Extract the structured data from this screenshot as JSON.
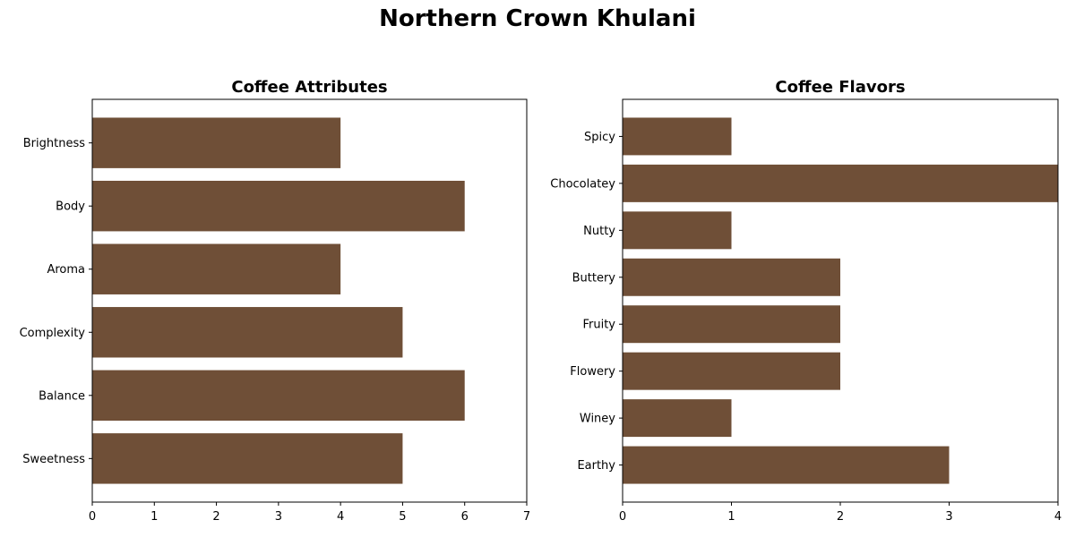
{
  "figure_title": "Northern Crown Khulani",
  "bar_color": "#6f4f37",
  "chart_data": [
    {
      "type": "bar",
      "orientation": "horizontal",
      "title": "Coffee Attributes",
      "categories": [
        "Sweetness",
        "Balance",
        "Complexity",
        "Aroma",
        "Body",
        "Brightness"
      ],
      "values": [
        5,
        6,
        5,
        4,
        6,
        4
      ],
      "xlim": [
        0,
        7
      ],
      "xticks": [
        0,
        1,
        2,
        3,
        4,
        5,
        6,
        7
      ],
      "xlabel": "",
      "ylabel": "",
      "grid": false
    },
    {
      "type": "bar",
      "orientation": "horizontal",
      "title": "Coffee Flavors",
      "categories": [
        "Earthy",
        "Winey",
        "Flowery",
        "Fruity",
        "Buttery",
        "Nutty",
        "Chocolatey",
        "Spicy"
      ],
      "values": [
        3,
        1,
        2,
        2,
        2,
        1,
        4,
        1
      ],
      "xlim": [
        0,
        4
      ],
      "xticks": [
        0,
        1,
        2,
        3,
        4
      ],
      "xlabel": "",
      "ylabel": "",
      "grid": false
    }
  ]
}
